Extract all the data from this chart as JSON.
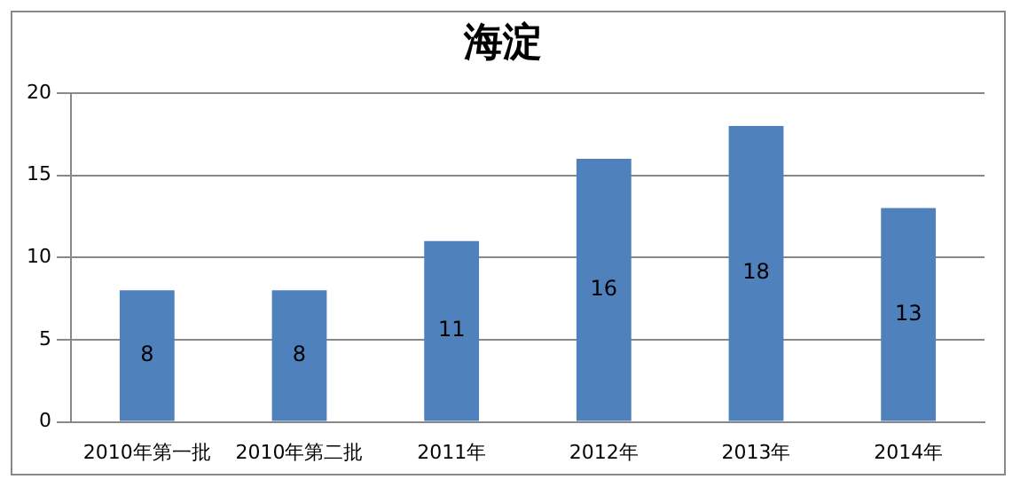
{
  "chart_data": {
    "type": "bar",
    "title": "海淀",
    "categories": [
      "2010年第一批",
      "2010年第二批",
      "2011年",
      "2012年",
      "2013年",
      "2014年"
    ],
    "values": [
      8,
      8,
      11,
      16,
      18,
      13
    ],
    "color": "#4f81bd",
    "ylim": [
      0,
      20
    ],
    "yticks": [
      0,
      5,
      10,
      15,
      20
    ],
    "grid": "y",
    "legend": false,
    "data_labels": true
  }
}
